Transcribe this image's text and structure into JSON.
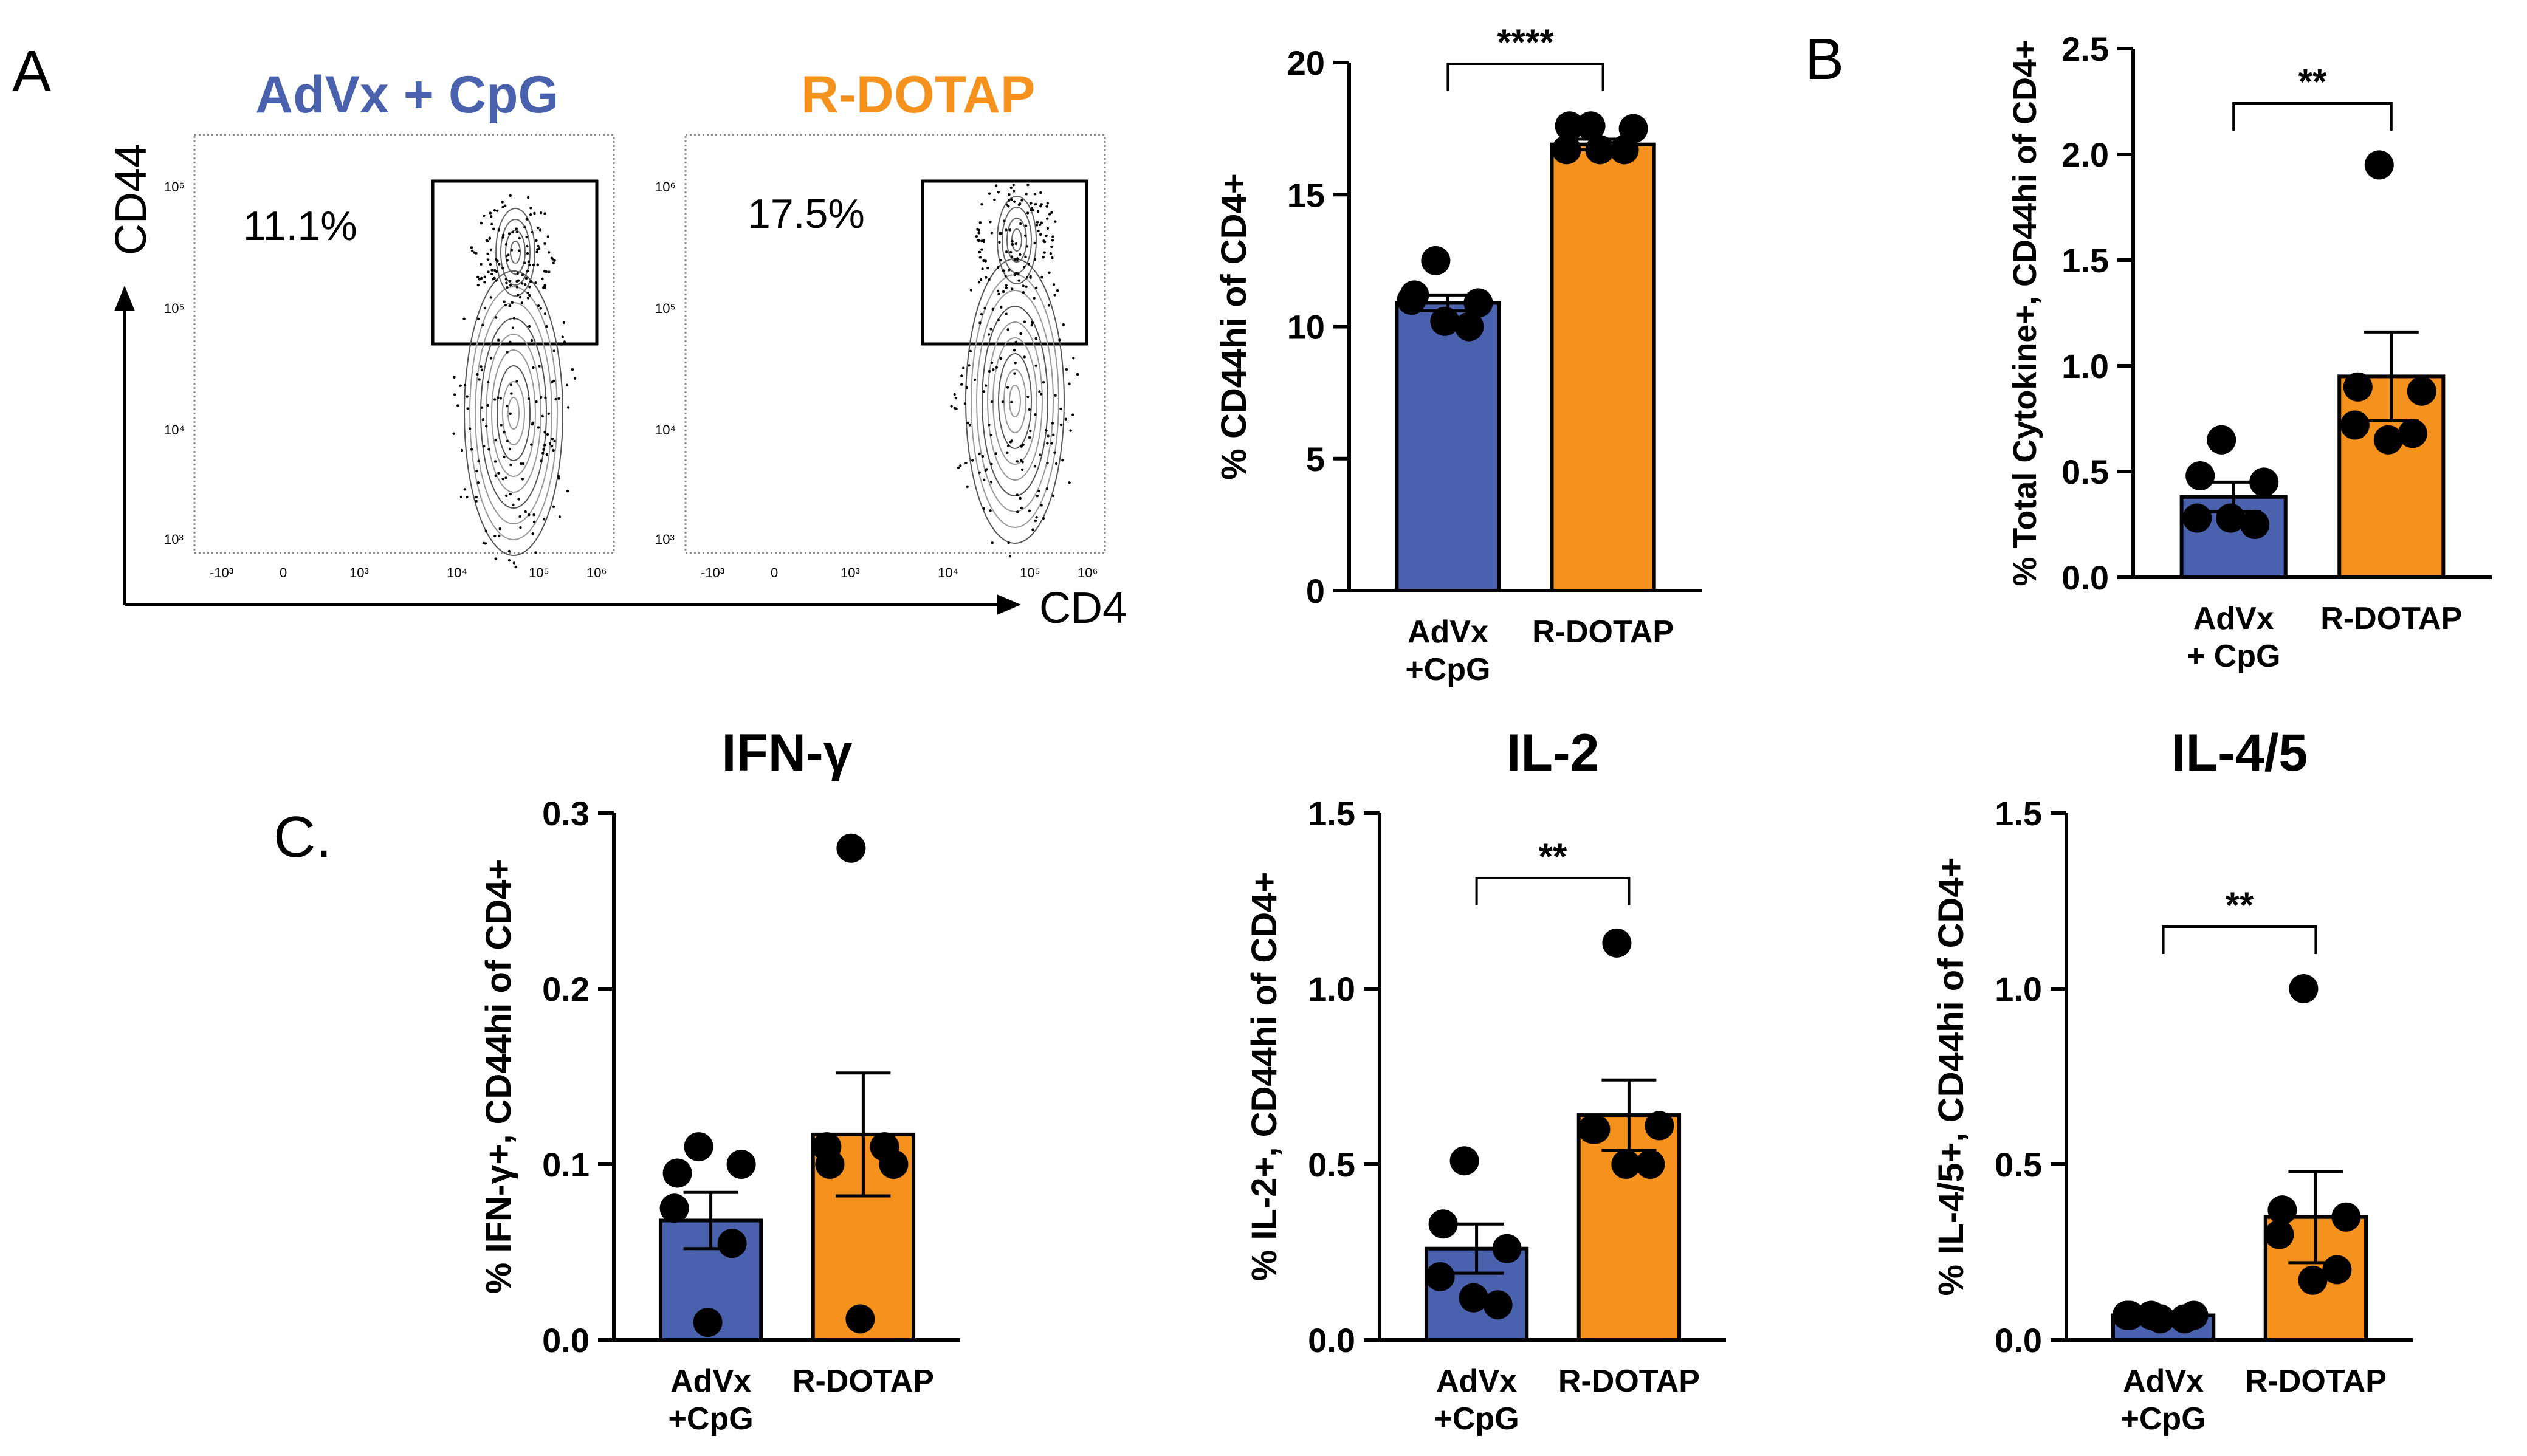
{
  "panels": {
    "A": "A",
    "B": "B",
    "C": "C."
  },
  "flow": {
    "x_axis_label": "CD4",
    "y_axis_label": "CD44",
    "y_ticks": [
      "10⁶",
      "10⁵",
      "10⁴",
      "10³"
    ],
    "x_ticks": [
      "-10³",
      "0",
      "10³",
      "10⁴",
      "10⁵",
      "10⁶"
    ],
    "plots": [
      {
        "title": "AdVx + CpG",
        "percent": "11.1%",
        "color": "#4a62ae"
      },
      {
        "title": "R-DOTAP",
        "percent": "17.5%",
        "color": "#f5921e"
      }
    ]
  },
  "colors": {
    "advx": "#4a62ae",
    "rdotap": "#f5921e"
  },
  "chart_data": [
    {
      "id": "A_bar",
      "type": "bar",
      "title": "",
      "ylabel": "% CD44hi of CD4+",
      "ylim": [
        0,
        20
      ],
      "yticks": [
        "0",
        "5",
        "10",
        "15",
        "20"
      ],
      "ytick_values": [
        0,
        5,
        10,
        15,
        20
      ],
      "categories": [
        [
          "AdVx",
          "+CpG"
        ],
        [
          "R-DOTAP"
        ]
      ],
      "values": [
        10.9,
        16.9
      ],
      "sem": [
        0.3,
        0.2
      ],
      "points": [
        [
          12.5,
          11.2,
          10.9,
          11.0,
          10.0,
          10.2
        ],
        [
          17.6,
          17.6,
          17.5,
          16.7,
          16.7,
          16.7
        ]
      ],
      "significance": "****"
    },
    {
      "id": "B_bar",
      "type": "bar",
      "title": "",
      "ylabel": "% Total Cytokine+, CD44hi of CD4+",
      "ylim": [
        0,
        2.5
      ],
      "yticks": [
        "0.0",
        "0.5",
        "1.0",
        "1.5",
        "2.0",
        "2.5"
      ],
      "ytick_values": [
        0,
        0.5,
        1.0,
        1.5,
        2.0,
        2.5
      ],
      "categories": [
        [
          "AdVx",
          "+ CpG"
        ],
        [
          "R-DOTAP"
        ]
      ],
      "values": [
        0.38,
        0.95
      ],
      "sem": [
        0.07,
        0.21
      ],
      "points": [
        [
          0.65,
          0.48,
          0.45,
          0.28,
          0.25,
          0.28
        ],
        [
          1.95,
          0.9,
          0.88,
          0.72,
          0.68,
          0.65
        ]
      ],
      "significance": "**"
    },
    {
      "id": "C_ifng",
      "type": "bar",
      "title": "IFN-γ",
      "ylabel": "% IFN-γ+, CD44hi of CD4+",
      "ylim": [
        0,
        0.3
      ],
      "yticks": [
        "0.0",
        "0.1",
        "0.2",
        "0.3"
      ],
      "ytick_values": [
        0,
        0.1,
        0.2,
        0.3
      ],
      "categories": [
        [
          "AdVx",
          "+CpG"
        ],
        [
          "R-DOTAP"
        ]
      ],
      "values": [
        0.068,
        0.117
      ],
      "sem": [
        0.016,
        0.035
      ],
      "points": [
        [
          0.11,
          0.095,
          0.1,
          0.075,
          0.055,
          0.01
        ],
        [
          0.28,
          0.1,
          0.1,
          0.11,
          0.11,
          0.012
        ]
      ],
      "significance": ""
    },
    {
      "id": "C_il2",
      "type": "bar",
      "title": "IL-2",
      "ylabel": "% IL-2+, CD44hi of CD4+",
      "ylim": [
        0,
        1.5
      ],
      "yticks": [
        "0.0",
        "0.5",
        "1.0",
        "1.5"
      ],
      "ytick_values": [
        0,
        0.5,
        1.0,
        1.5
      ],
      "categories": [
        [
          "AdVx",
          "+CpG"
        ],
        [
          "R-DOTAP"
        ]
      ],
      "values": [
        0.26,
        0.64
      ],
      "sem": [
        0.07,
        0.1
      ],
      "points": [
        [
          0.51,
          0.33,
          0.26,
          0.18,
          0.1,
          0.12
        ],
        [
          1.13,
          0.6,
          0.61,
          0.6,
          0.5,
          0.5
        ]
      ],
      "significance": "**"
    },
    {
      "id": "C_il45",
      "type": "bar",
      "title": "IL-4/5",
      "ylabel": "% IL-4/5+, CD44hi of CD4+",
      "ylim": [
        0,
        1.5
      ],
      "yticks": [
        "0.0",
        "0.5",
        "1.0",
        "1.5"
      ],
      "ytick_values": [
        0,
        0.5,
        1.0,
        1.5
      ],
      "categories": [
        [
          "AdVx",
          "+CpG"
        ],
        [
          "R-DOTAP"
        ]
      ],
      "values": [
        0.07,
        0.35
      ],
      "sem": [
        0.01,
        0.13
      ],
      "points": [
        [
          0.07,
          0.07,
          0.07,
          0.07,
          0.06,
          0.06
        ],
        [
          1.0,
          0.37,
          0.35,
          0.3,
          0.2,
          0.17
        ]
      ],
      "significance": "**"
    }
  ]
}
